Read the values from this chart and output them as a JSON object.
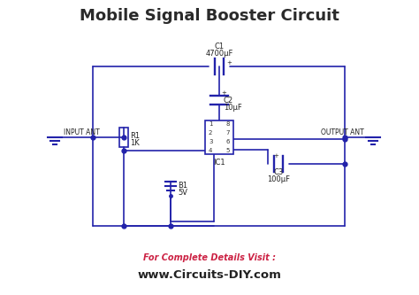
{
  "title": "Mobile Signal Booster Circuit",
  "title_fontsize": 13,
  "title_fontweight": "bold",
  "title_color": "#2a2a2a",
  "bg_color": "#ffffff",
  "line_color": "#2222aa",
  "line_width": 1.2,
  "footer_text1": "For Complete Details Visit :",
  "footer_text2": "www.Circuits-DIY.com",
  "footer_color1": "#cc2244",
  "footer_color2": "#222222",
  "C1_label": "C1",
  "C1_val": "4700μF",
  "C2_label": "C2",
  "C2_val": "10μF",
  "C3_label": "C3",
  "C3_val": "100μF",
  "R1_label": "R1",
  "R1_val": "1K",
  "B1_label": "B1",
  "B1_val": "5V",
  "IC1_label": "IC1",
  "INPUT_ANT": "INPUT ANT",
  "OUTPUT_ANT": "OUTPUT ANT"
}
